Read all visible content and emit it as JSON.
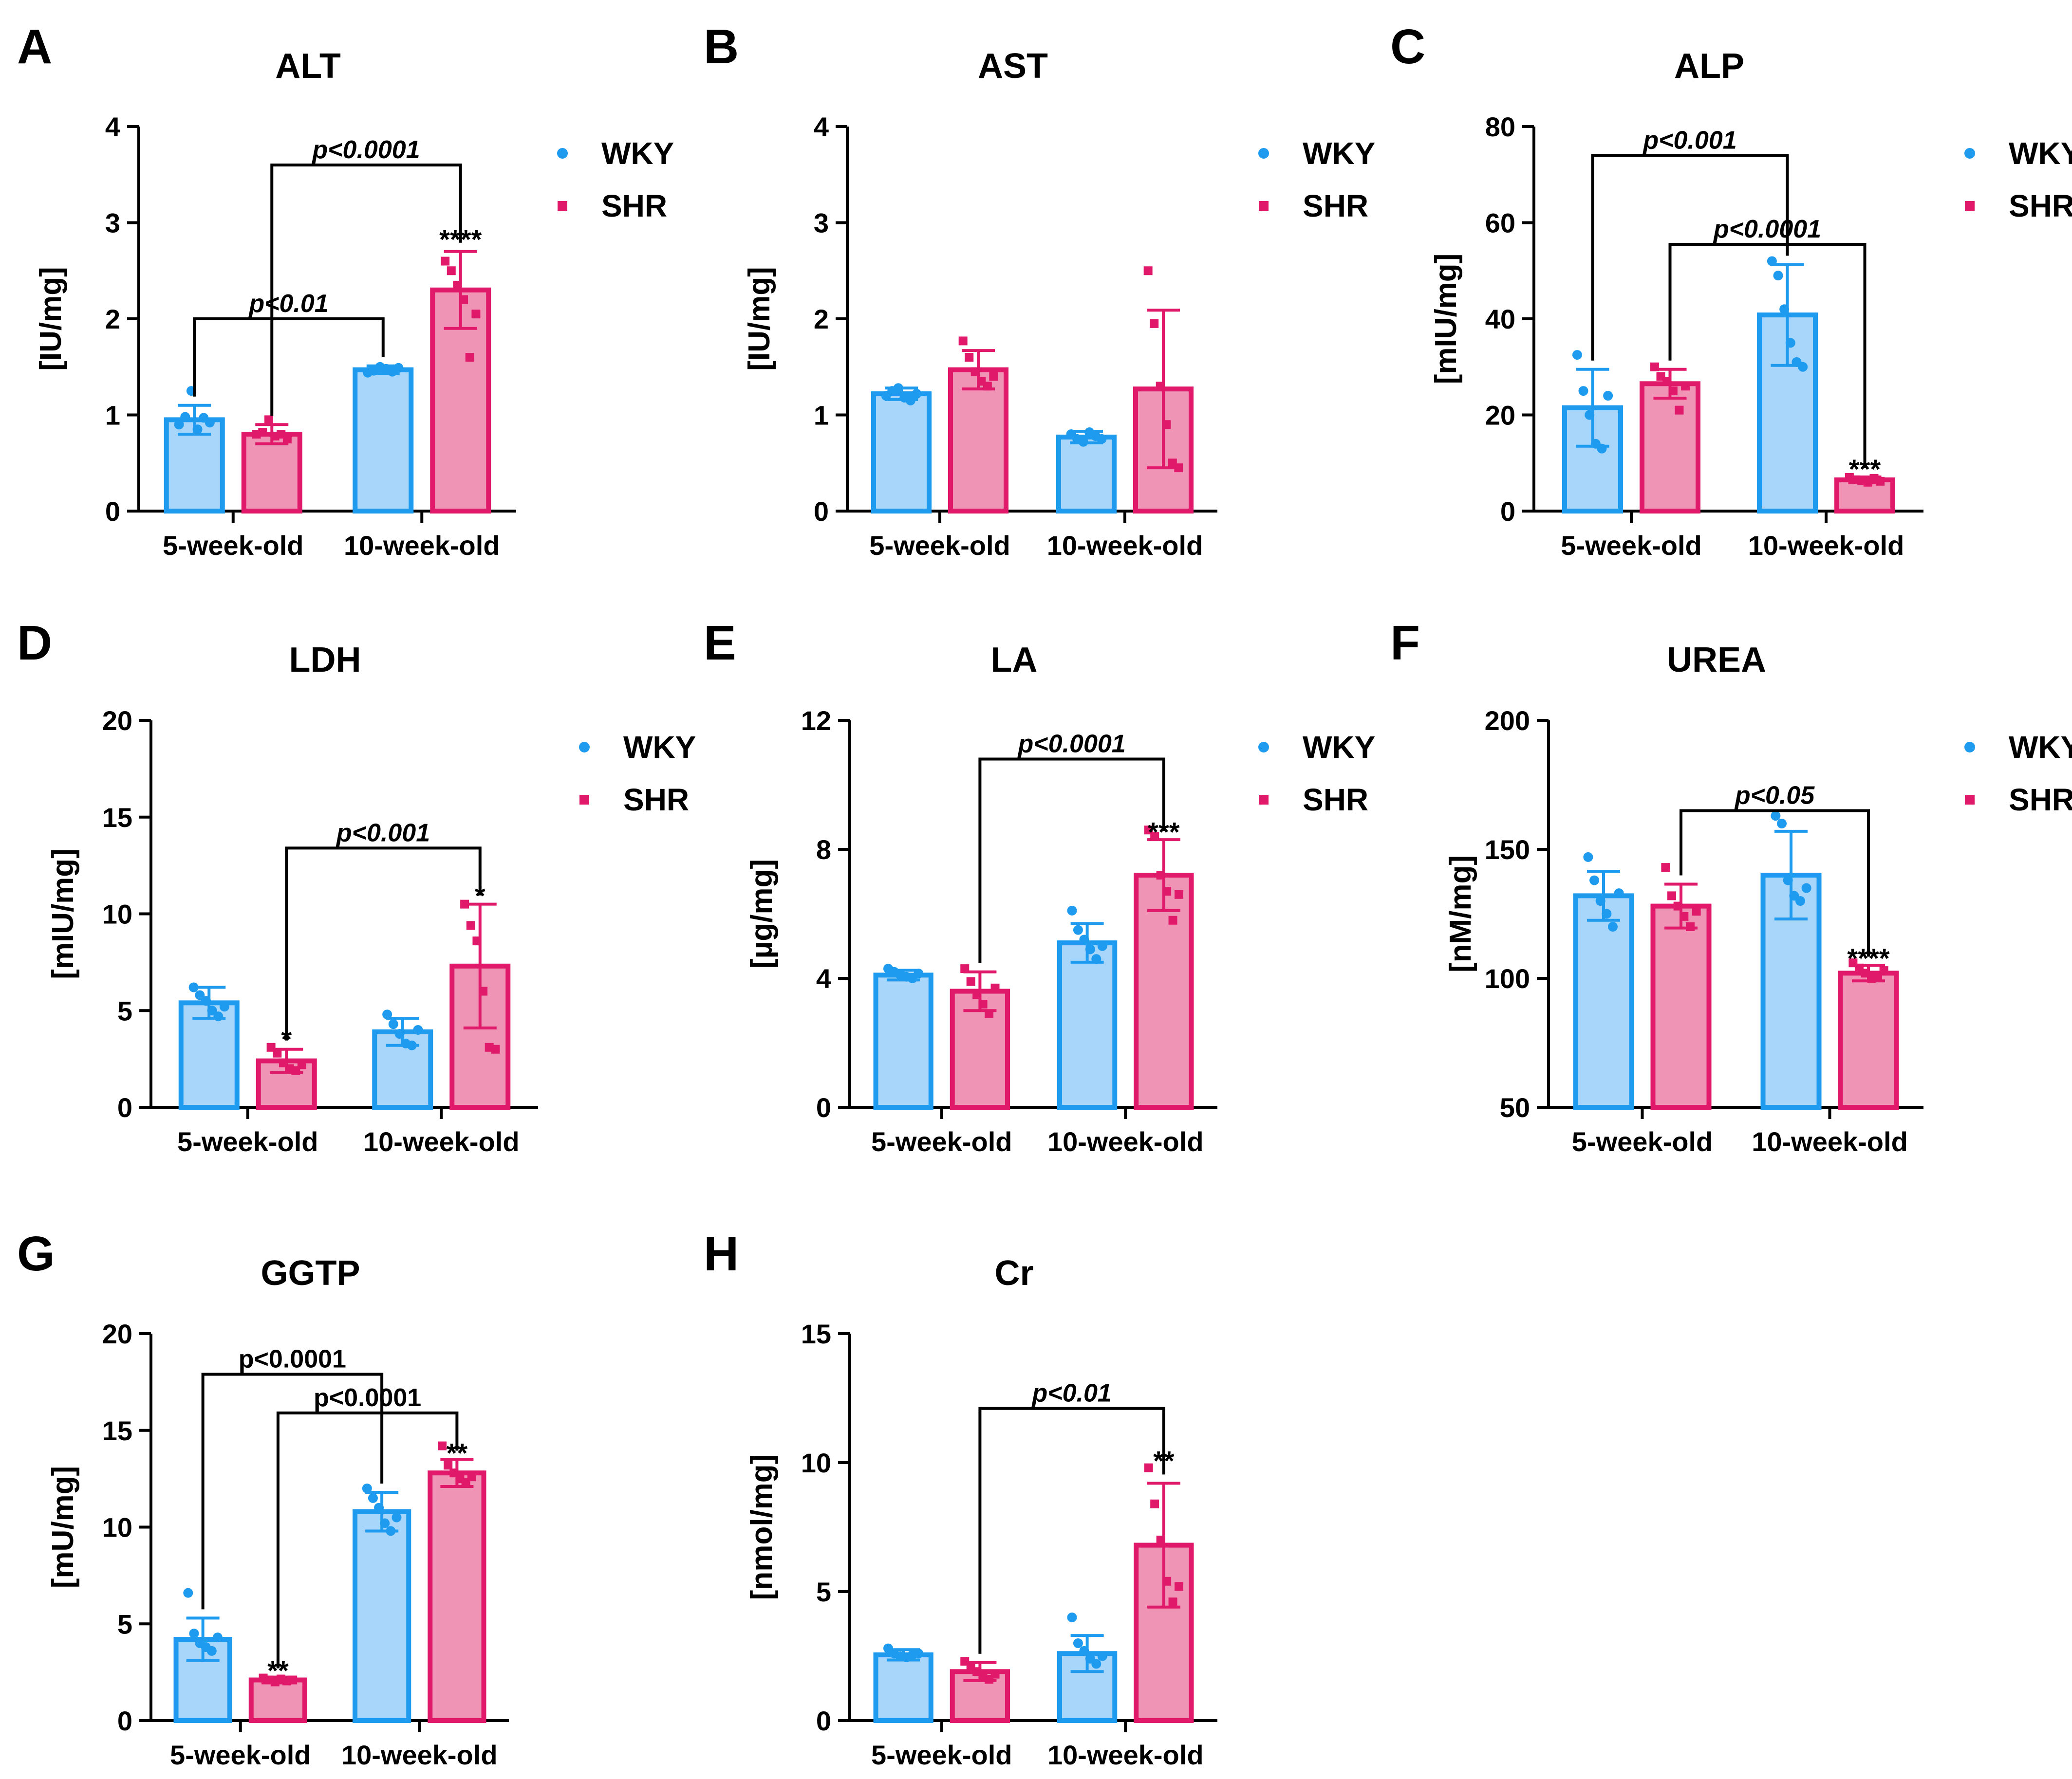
{
  "colors": {
    "wky_stroke": "#1e9bef",
    "wky_fill": "#a8d6fa",
    "shr_stroke": "#e0196a",
    "shr_fill": "#f094b6",
    "axis": "#000000"
  },
  "chart_data": [
    {
      "panel": "A",
      "type": "bar",
      "title": "ALT",
      "ylabel": "[IU/mg]",
      "ylim": [
        0,
        4
      ],
      "yticks": [
        0,
        1,
        2,
        3,
        4
      ],
      "categories": [
        "5-week-old",
        "10-week-old"
      ],
      "legend": [
        "WKY",
        "SHR"
      ],
      "series": [
        {
          "name": "WKY",
          "values": [
            0.95,
            1.47
          ],
          "errors": [
            0.15,
            0.04
          ],
          "points": [
            [
              0.9,
              0.98,
              1.25,
              0.85,
              0.97,
              0.92
            ],
            [
              1.44,
              1.46,
              1.5,
              1.48,
              1.45,
              1.49
            ]
          ]
        },
        {
          "name": "SHR",
          "values": [
            0.8,
            2.3
          ],
          "errors": [
            0.1,
            0.4
          ],
          "points": [
            [
              0.8,
              0.82,
              0.95,
              0.78,
              0.8,
              0.75
            ],
            [
              2.6,
              2.5,
              2.35,
              2.2,
              1.6,
              2.05
            ]
          ]
        }
      ],
      "significance": [
        {
          "label": "p<0.0001",
          "from": [
            0,
            1
          ],
          "to": [
            1,
            1
          ],
          "y": 3.6,
          "italic": true
        },
        {
          "label": "p<0.01",
          "from": [
            0,
            0
          ],
          "to": [
            1,
            0
          ],
          "y": 2.0,
          "italic": true
        }
      ],
      "stars": [
        {
          "label": "****",
          "group": 1,
          "series": 1,
          "y": 2.78
        }
      ]
    },
    {
      "panel": "B",
      "type": "bar",
      "title": "AST",
      "ylabel": "[IU/mg]",
      "ylim": [
        0,
        4
      ],
      "yticks": [
        0,
        1,
        2,
        3,
        4
      ],
      "categories": [
        "5-week-old",
        "10-week-old"
      ],
      "legend": [
        "WKY",
        "SHR"
      ],
      "series": [
        {
          "name": "WKY",
          "values": [
            1.22,
            0.77
          ],
          "errors": [
            0.06,
            0.06
          ],
          "points": [
            [
              1.2,
              1.25,
              1.28,
              1.18,
              1.15,
              1.22
            ],
            [
              0.8,
              0.75,
              0.72,
              0.82,
              0.78,
              0.75
            ]
          ]
        },
        {
          "name": "SHR",
          "values": [
            1.47,
            1.27
          ],
          "errors": [
            0.2,
            0.82
          ],
          "points": [
            [
              1.77,
              1.6,
              1.45,
              1.35,
              1.3,
              1.4
            ],
            [
              2.5,
              1.95,
              1.3,
              0.9,
              0.5,
              0.45
            ]
          ]
        }
      ],
      "significance": [],
      "stars": []
    },
    {
      "panel": "C",
      "type": "bar",
      "title": "ALP",
      "ylabel": "[mIU/mg]",
      "ylim": [
        0,
        80
      ],
      "yticks": [
        0,
        20,
        40,
        60,
        80
      ],
      "categories": [
        "5-week-old",
        "10-week-old"
      ],
      "legend": [
        "WKY",
        "SHR"
      ],
      "series": [
        {
          "name": "WKY",
          "values": [
            21.5,
            40.8
          ],
          "errors": [
            8.0,
            10.5
          ],
          "points": [
            [
              32.5,
              25,
              20,
              14,
              13,
              24
            ],
            [
              52,
              49,
              42,
              35,
              31,
              30
            ]
          ]
        },
        {
          "name": "SHR",
          "values": [
            26.5,
            6.5
          ],
          "errors": [
            3.0,
            0.6
          ],
          "points": [
            [
              30,
              28,
              27,
              25,
              21,
              26
            ],
            [
              7,
              6.5,
              6.3,
              6,
              6.8,
              6.2
            ]
          ]
        }
      ],
      "significance": [
        {
          "label": "p<0.001",
          "from": [
            0,
            0
          ],
          "to": [
            1,
            0
          ],
          "y": 74,
          "italic": true
        },
        {
          "label": "p<0.0001",
          "from": [
            0,
            1
          ],
          "to": [
            1,
            1
          ],
          "y": 55.5,
          "italic": true
        }
      ],
      "stars": [
        {
          "label": "***",
          "group": 1,
          "series": 1,
          "y": 7.8
        }
      ]
    },
    {
      "panel": "D",
      "type": "bar",
      "title": "LDH",
      "ylabel": "[mIU/mg]",
      "ylim": [
        0,
        20
      ],
      "yticks": [
        0,
        5,
        10,
        15,
        20
      ],
      "categories": [
        "5-week-old",
        "10-week-old"
      ],
      "legend": [
        "WKY",
        "SHR"
      ],
      "series": [
        {
          "name": "WKY",
          "values": [
            5.4,
            3.9
          ],
          "errors": [
            0.8,
            0.7
          ],
          "points": [
            [
              6.2,
              5.8,
              5.5,
              5,
              4.7,
              5.2
            ],
            [
              4.8,
              4.3,
              3.8,
              3.3,
              3.2,
              4
            ]
          ]
        },
        {
          "name": "SHR",
          "values": [
            2.4,
            7.3
          ],
          "errors": [
            0.6,
            3.2
          ],
          "points": [
            [
              3.1,
              2.8,
              2.3,
              2,
              1.9,
              2.2
            ],
            [
              10.5,
              9.4,
              8.6,
              6,
              3.1,
              3
            ]
          ]
        }
      ],
      "significance": [
        {
          "label": "p<0.001",
          "from": [
            0,
            1
          ],
          "to": [
            1,
            1
          ],
          "y": 13.4,
          "italic": true
        }
      ],
      "stars": [
        {
          "label": "*",
          "group": 0,
          "series": 1,
          "y": 3.3
        },
        {
          "label": "*",
          "group": 1,
          "series": 1,
          "y": 10.7
        }
      ]
    },
    {
      "panel": "E",
      "type": "bar",
      "title": "LA",
      "ylabel": "[µg/mg]",
      "ylim": [
        0,
        12
      ],
      "yticks": [
        0,
        4,
        8,
        12
      ],
      "categories": [
        "5-week-old",
        "10-week-old"
      ],
      "legend": [
        "WKY",
        "SHR"
      ],
      "series": [
        {
          "name": "WKY",
          "values": [
            4.1,
            5.1
          ],
          "errors": [
            0.15,
            0.6
          ],
          "points": [
            [
              4.3,
              4.2,
              4.1,
              4.05,
              4,
              4.15
            ],
            [
              6.1,
              5.5,
              5.2,
              4.9,
              4.6,
              5
            ]
          ]
        },
        {
          "name": "SHR",
          "values": [
            3.6,
            7.2
          ],
          "errors": [
            0.6,
            1.1
          ],
          "points": [
            [
              4.3,
              3.9,
              3.5,
              3.2,
              2.9,
              3.7
            ],
            [
              8.6,
              8.4,
              7.2,
              6.7,
              5.8,
              6.6
            ]
          ]
        }
      ],
      "significance": [
        {
          "label": "p<0.0001",
          "from": [
            0,
            1
          ],
          "to": [
            1,
            1
          ],
          "y": 10.8,
          "italic": true
        }
      ],
      "stars": [
        {
          "label": "***",
          "group": 1,
          "series": 1,
          "y": 8.4
        }
      ]
    },
    {
      "panel": "F",
      "type": "bar",
      "title": "UREA",
      "ylabel": "[nM/mg]",
      "ylim": [
        50,
        200
      ],
      "yticks": [
        50,
        100,
        150,
        200
      ],
      "categories": [
        "5-week-old",
        "10-week-old"
      ],
      "legend": [
        "WKY",
        "SHR"
      ],
      "series": [
        {
          "name": "WKY",
          "values": [
            132,
            140
          ],
          "errors": [
            9.5,
            17
          ],
          "points": [
            [
              147,
              138,
              130,
              125,
              120,
              133
            ],
            [
              163,
              160,
              138,
              132,
              130,
              135
            ]
          ]
        },
        {
          "name": "SHR",
          "values": [
            128,
            102
          ],
          "errors": [
            8.5,
            3
          ],
          "points": [
            [
              143,
              132,
              128,
              124,
              120,
              126
            ],
            [
              106,
              104,
              102,
              100,
              101,
              103
            ]
          ]
        }
      ],
      "significance": [
        {
          "label": "p<0.05",
          "from": [
            0,
            1
          ],
          "to": [
            1,
            1
          ],
          "y": 165,
          "italic": true
        }
      ],
      "stars": [
        {
          "label": "****",
          "group": 1,
          "series": 1,
          "y": 106
        }
      ]
    },
    {
      "panel": "G",
      "type": "bar",
      "title": "GGTP",
      "ylabel": "[mU/mg]",
      "ylim": [
        0,
        20
      ],
      "yticks": [
        0,
        5,
        10,
        15,
        20
      ],
      "categories": [
        "5-week-old",
        "10-week-old"
      ],
      "legend": [],
      "series": [
        {
          "name": "WKY",
          "values": [
            4.2,
            10.8
          ],
          "errors": [
            1.1,
            1.0
          ],
          "points": [
            [
              6.6,
              4.5,
              4,
              3.8,
              3.6,
              4.3
            ],
            [
              12,
              11.5,
              11,
              10.2,
              9.8,
              10.5
            ]
          ]
        },
        {
          "name": "SHR",
          "values": [
            2.1,
            12.8
          ],
          "errors": [
            0.15,
            0.7
          ],
          "points": [
            [
              2.2,
              2.1,
              2,
              2.15,
              2.05,
              2.1
            ],
            [
              14.2,
              13.2,
              12.8,
              12.5,
              12.3,
              12.6
            ]
          ]
        }
      ],
      "significance": [
        {
          "label": "p<0.0001",
          "from": [
            0,
            0
          ],
          "to": [
            1,
            0
          ],
          "y": 17.9,
          "italic": false
        },
        {
          "label": "p<0.0001",
          "from": [
            0,
            1
          ],
          "to": [
            1,
            1
          ],
          "y": 15.9,
          "italic": false
        }
      ],
      "stars": [
        {
          "label": "**",
          "group": 0,
          "series": 1,
          "y": 2.35
        },
        {
          "label": "**",
          "group": 1,
          "series": 1,
          "y": 13.6
        }
      ]
    },
    {
      "panel": "H",
      "type": "bar",
      "title": "Cr",
      "ylabel": "[nmol/mg]",
      "ylim": [
        0,
        15
      ],
      "yticks": [
        0,
        5,
        10,
        15
      ],
      "categories": [
        "5-week-old",
        "10-week-old"
      ],
      "legend": [],
      "series": [
        {
          "name": "WKY",
          "values": [
            2.55,
            2.6
          ],
          "errors": [
            0.2,
            0.7
          ],
          "points": [
            [
              2.8,
              2.6,
              2.5,
              2.45,
              2.55,
              2.6
            ],
            [
              4,
              3,
              2.7,
              2.4,
              2.2,
              2.5
            ]
          ]
        },
        {
          "name": "SHR",
          "values": [
            1.9,
            6.8
          ],
          "errors": [
            0.35,
            2.4
          ],
          "points": [
            [
              2.3,
              2.1,
              1.9,
              1.7,
              1.6,
              1.8
            ],
            [
              9.8,
              8.4,
              7,
              5.4,
              4.6,
              5.2
            ]
          ]
        }
      ],
      "significance": [
        {
          "label": "p<0.01",
          "from": [
            0,
            1
          ],
          "to": [
            1,
            1
          ],
          "y": 12.1,
          "italic": true
        }
      ],
      "stars": [
        {
          "label": "**",
          "group": 1,
          "series": 1,
          "y": 9.9
        }
      ]
    }
  ]
}
